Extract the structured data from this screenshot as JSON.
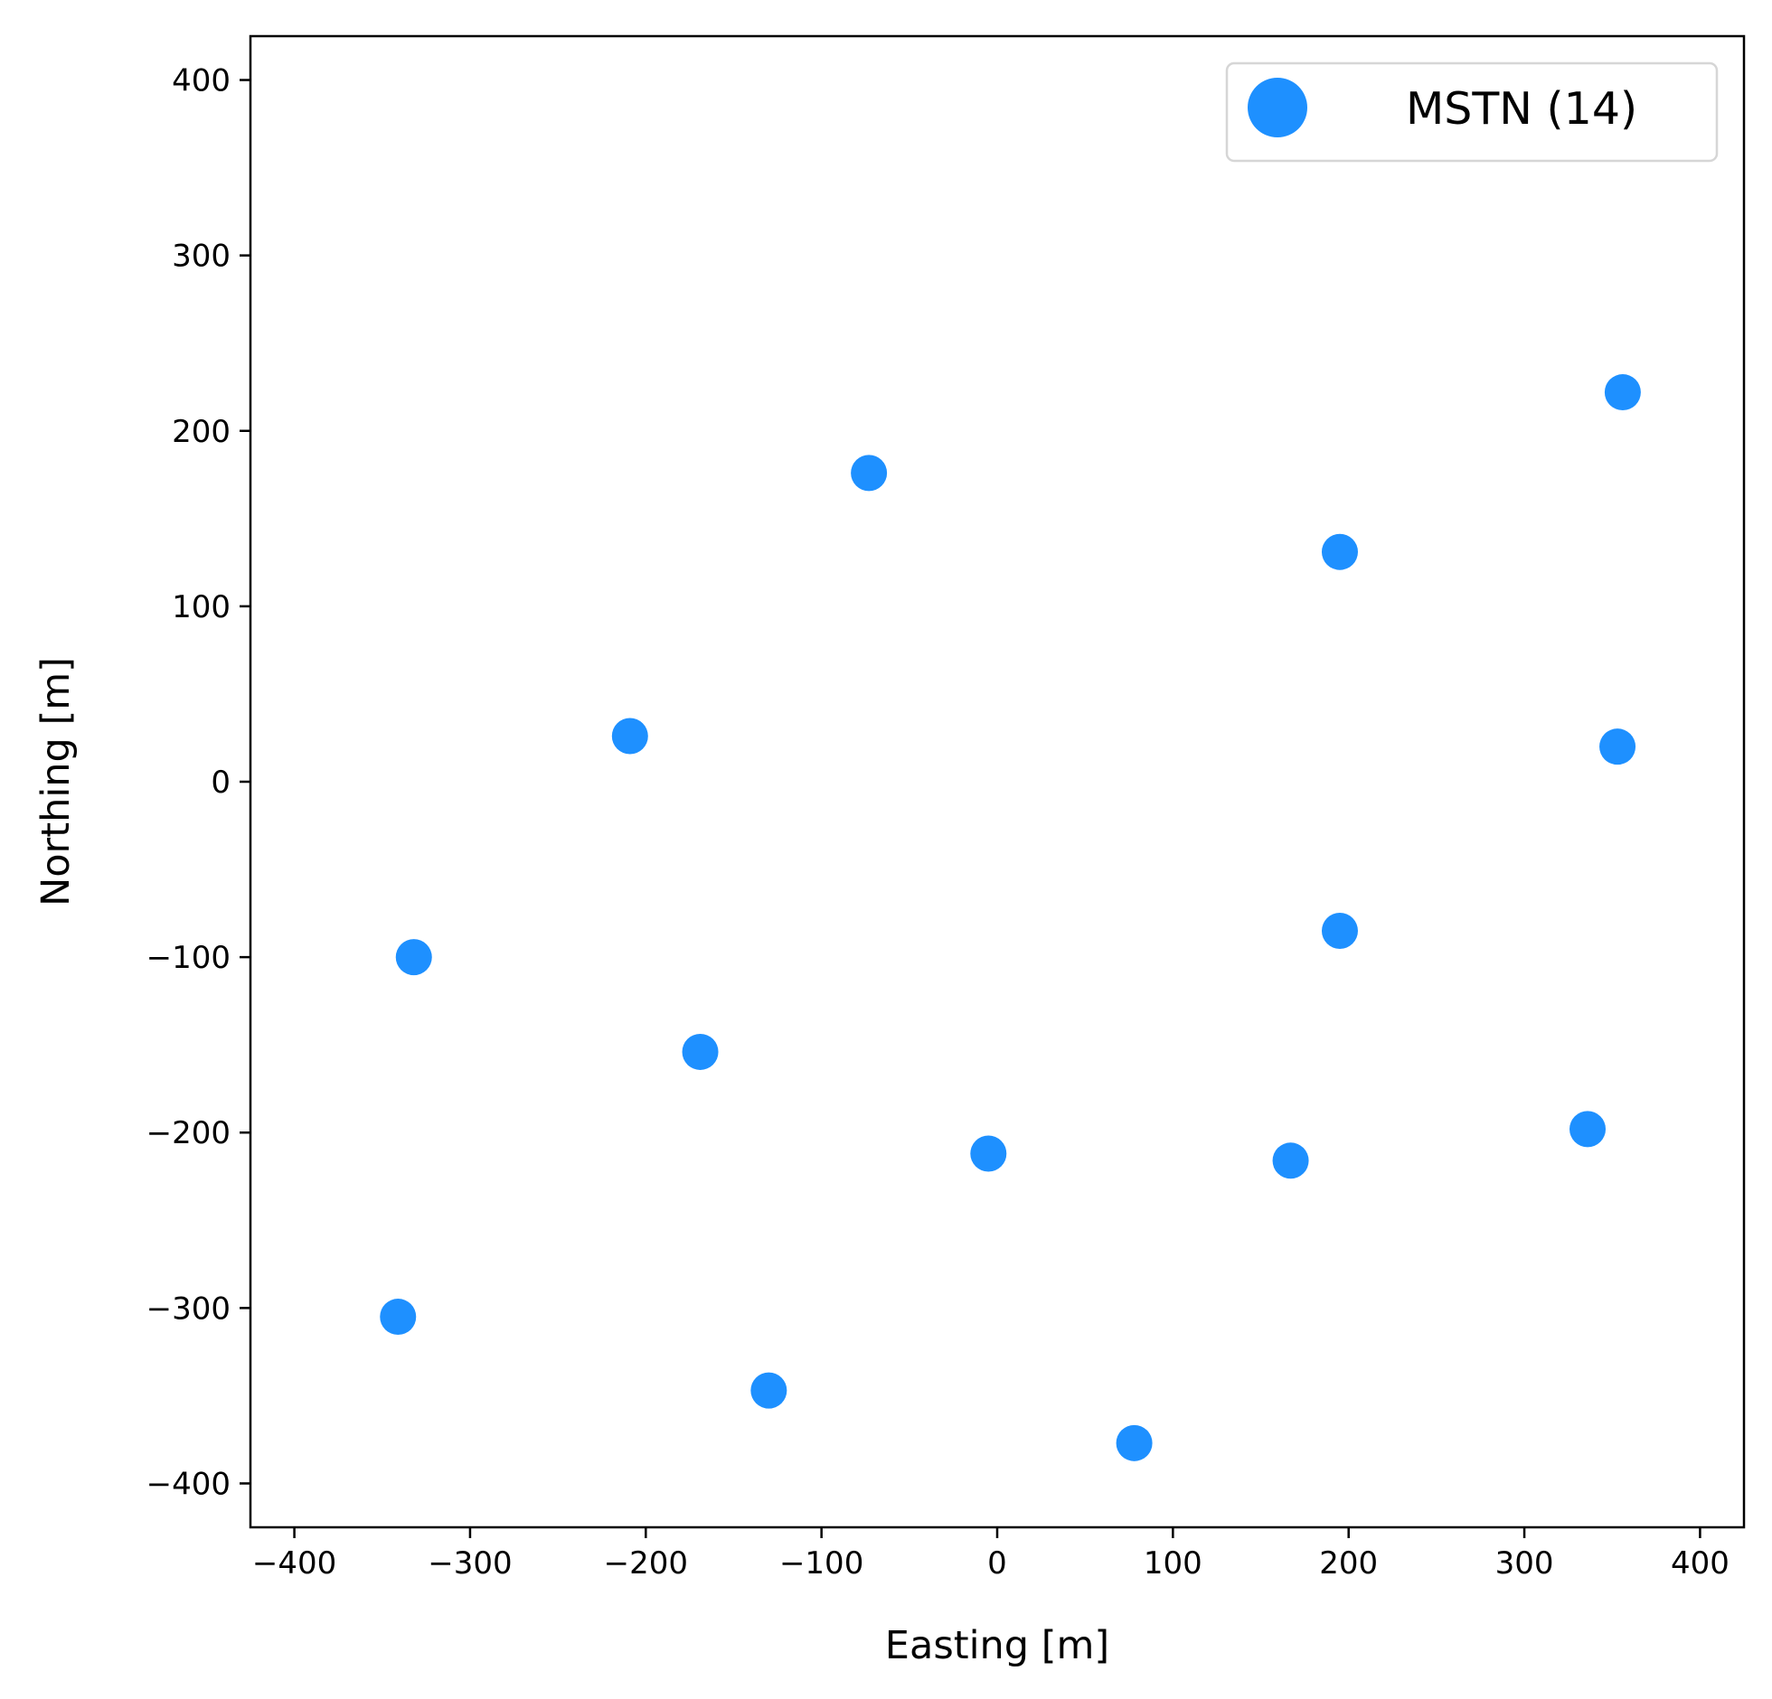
{
  "chart_data": {
    "type": "scatter",
    "xlabel": "Easting [m]",
    "ylabel": "Northing [m]",
    "xlim": [
      -425,
      425
    ],
    "ylim": [
      -425,
      425
    ],
    "xticks": [
      -400,
      -300,
      -200,
      -100,
      0,
      100,
      200,
      300,
      400
    ],
    "yticks": [
      -400,
      -300,
      -200,
      -100,
      0,
      100,
      200,
      300,
      400
    ],
    "grid": false,
    "legend_position": "top-right",
    "series": [
      {
        "name": "MSTN (14)",
        "color": "#1e90ff",
        "points": [
          {
            "x": 356,
            "y": 222
          },
          {
            "x": -73,
            "y": 176
          },
          {
            "x": 195,
            "y": 131
          },
          {
            "x": -209,
            "y": 26
          },
          {
            "x": 353,
            "y": 20
          },
          {
            "x": 195,
            "y": -85
          },
          {
            "x": -332,
            "y": -100
          },
          {
            "x": -169,
            "y": -154
          },
          {
            "x": -5,
            "y": -212
          },
          {
            "x": 167,
            "y": -216
          },
          {
            "x": 336,
            "y": -198
          },
          {
            "x": -341,
            "y": -305
          },
          {
            "x": -130,
            "y": -347
          },
          {
            "x": 78,
            "y": -377
          }
        ]
      }
    ]
  }
}
